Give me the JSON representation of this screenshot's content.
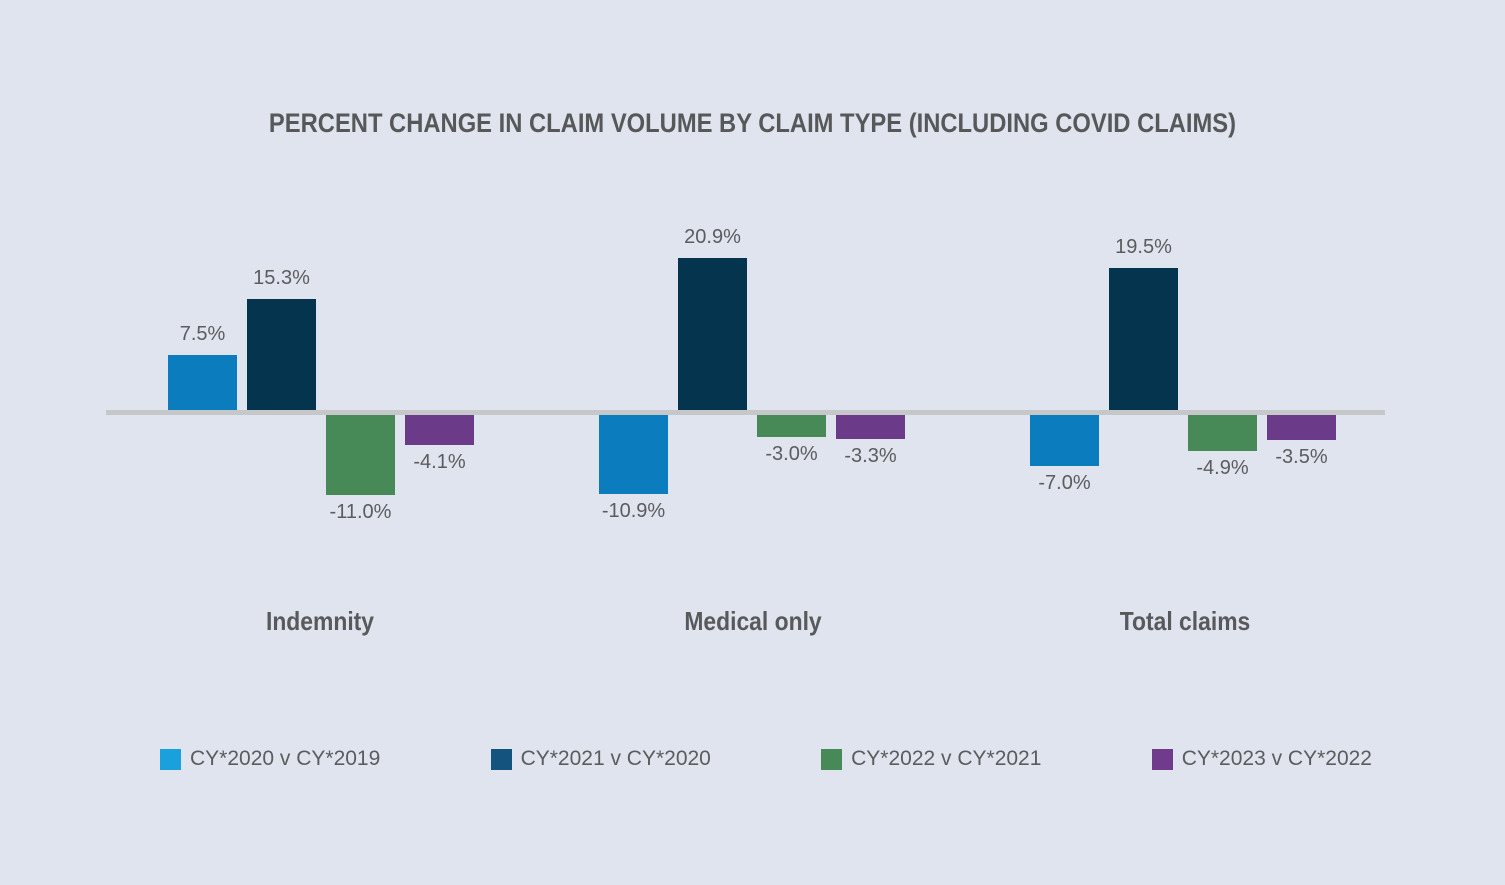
{
  "page": {
    "background_color": "#dfe4ee",
    "axis_line_color": "#c5c7c9",
    "title_color": "#57585a",
    "label_color": "#5b5c5e"
  },
  "chart_data": {
    "type": "bar",
    "title": "PERCENT CHANGE IN CLAIM VOLUME BY CLAIM TYPE (INCLUDING COVID CLAIMS)",
    "categories": [
      "Indemnity",
      "Medical only",
      "Total claims"
    ],
    "series": [
      {
        "name": "CY*2020 v CY*2019",
        "color": "#0b7cbe",
        "legend_color": "#1aa0dc",
        "values": [
          7.5,
          -10.9,
          -7.0
        ],
        "labels": [
          "7.5%",
          "-10.9%",
          "-7.0%"
        ]
      },
      {
        "name": "CY*2021 v CY*2020",
        "color": "#05344f",
        "legend_color": "#15537f",
        "values": [
          15.3,
          20.9,
          19.5
        ],
        "labels": [
          "15.3%",
          "20.9%",
          "19.5%"
        ]
      },
      {
        "name": "CY*2022 v CY*2021",
        "color": "#478a58",
        "legend_color": "#478a58",
        "values": [
          -11.0,
          -3.0,
          -4.9
        ],
        "labels": [
          "-11.0%",
          "-3.0%",
          "-4.9%"
        ]
      },
      {
        "name": "CY*2023 v CY*2022",
        "color": "#6b3a88",
        "legend_color": "#703b8c",
        "values": [
          -4.1,
          -3.3,
          -3.5
        ],
        "labels": [
          "-4.1%",
          "-3.3%",
          "-3.5%"
        ]
      }
    ],
    "xlabel": "",
    "ylabel": "",
    "grid": false,
    "axis_ticks_visible": false,
    "legend_position": "bottom",
    "value_labels_visible": true
  }
}
